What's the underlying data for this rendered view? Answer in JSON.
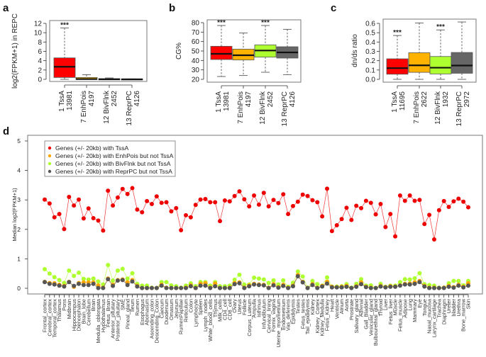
{
  "chart_data": [
    {
      "panel": "a",
      "type": "boxplot",
      "ylabel": "log2(FPKM+1) in REPC",
      "ylim": [
        0,
        12
      ],
      "yticks": [
        0,
        2,
        4,
        6,
        8,
        10,
        12
      ],
      "categories": [
        {
          "name": "1 TssA",
          "n": "13981",
          "color": "#ff0000",
          "min": 0,
          "q1": 0.4,
          "median": 2.7,
          "q3": 4.6,
          "max": 11,
          "sig": "***"
        },
        {
          "name": "7 EnhPois",
          "n": "4197",
          "color": "#d6a800",
          "min": 0,
          "q1": 0,
          "median": 0.05,
          "q3": 0.4,
          "max": 1.0,
          "sig": ""
        },
        {
          "name": "12 BivFlnk",
          "n": "2452",
          "color": "#adff2f",
          "min": 0,
          "q1": 0,
          "median": 0,
          "q3": 0.15,
          "max": 0.3,
          "sig": ""
        },
        {
          "name": "13 ReprPC",
          "n": "4126",
          "color": "#666666",
          "min": 0,
          "q1": 0,
          "median": 0,
          "q3": 0.1,
          "max": 0.1,
          "sig": ""
        }
      ]
    },
    {
      "panel": "b",
      "type": "boxplot",
      "ylabel": "CG%",
      "ylim": [
        20,
        80
      ],
      "yticks": [
        20,
        30,
        40,
        50,
        60,
        70,
        80
      ],
      "categories": [
        {
          "name": "1 TssA",
          "n": "13981",
          "color": "#ff0000",
          "min": 23,
          "q1": 41,
          "median": 47,
          "q3": 55,
          "max": 77,
          "sig": "***"
        },
        {
          "name": "7 EnhPois",
          "n": "4197",
          "color": "#ffb300",
          "min": 24,
          "q1": 40.5,
          "median": 45.5,
          "q3": 52,
          "max": 69,
          "sig": ""
        },
        {
          "name": "12 BivFlnk",
          "n": "2452",
          "color": "#adff2f",
          "min": 27.5,
          "q1": 43.5,
          "median": 50.5,
          "q3": 56.5,
          "max": 77,
          "sig": "***"
        },
        {
          "name": "13 ReprPC",
          "n": "4126",
          "color": "#666666",
          "min": 25,
          "q1": 42.5,
          "median": 48.5,
          "q3": 54.5,
          "max": 73,
          "sig": ""
        }
      ]
    },
    {
      "panel": "c",
      "type": "boxplot",
      "ylabel": "dn/ds ratio",
      "ylim": [
        0,
        0.6
      ],
      "yticks": [
        "0.0",
        "0.1",
        "0.2",
        "0.3",
        "0.4",
        "0.5",
        "0.6"
      ],
      "categories": [
        {
          "name": "1 TssA",
          "n": "11695",
          "color": "#ff0000",
          "min": 0,
          "q1": 0.055,
          "median": 0.12,
          "q3": 0.22,
          "max": 0.47,
          "sig": "***"
        },
        {
          "name": "7 EnhPois",
          "n": "2622",
          "color": "#ffb300",
          "min": 0,
          "q1": 0.075,
          "median": 0.15,
          "q3": 0.285,
          "max": 0.605,
          "sig": ""
        },
        {
          "name": "12 BivFlnk",
          "n": "1932",
          "color": "#adff2f",
          "min": 0,
          "q1": 0.058,
          "median": 0.125,
          "q3": 0.245,
          "max": 0.53,
          "sig": "***"
        },
        {
          "name": "13 ReprPC",
          "n": "2972",
          "color": "#666666",
          "min": 0,
          "q1": 0.065,
          "median": 0.148,
          "q3": 0.288,
          "max": 0.615,
          "sig": ""
        }
      ]
    },
    {
      "panel": "d",
      "type": "line",
      "ylabel": "Median log2(FPKM+1)",
      "ylim": [
        0,
        5
      ],
      "yticks": [
        0,
        1,
        2,
        3,
        4,
        5
      ],
      "legend_position": "top-left",
      "categories": [
        "Frontal_cortex",
        "Cerebral_cortex",
        "Temporal_cortex",
        "Thalamus",
        "Pons",
        "Midbrain",
        "Hippocampus",
        "Diencephalon",
        "Brain_lobe",
        "Cerebellum",
        "Brain",
        "Medulla_oblongata",
        "Hypothalamus",
        "Fetus_Brain",
        "Anterior_pituitary",
        "Posterior_pituitary",
        "SME",
        "Pineal_gland",
        "Ileum",
        "Rumen",
        "Esophagus",
        "Abomasum",
        "Ascending_colon",
        "Descending_Colon",
        "Caecum",
        "Duodenum",
        "Omasum",
        "Jejunum",
        "RumenPapillae",
        "Reticulum",
        "Colon",
        "Lymphocyte",
        "Spleen",
        "Lymph_nodes",
        "White_blood_cells",
        "Thymus",
        "Milk_cells",
        "CD4_cell",
        "CD8_cell",
        "Ovary",
        "Uterus",
        "Follicle",
        "Corpus_Luteum",
        "Ampulla",
        "Isthmus",
        "Infundibulum",
        "Cervical_lining",
        "Fornix_vagina",
        "Uterine_myometrium",
        "Endometrium",
        "Vas_deferens",
        "Epididymis",
        "Testes",
        "Fetus_testes",
        "Tail_epididymis",
        "Kidney",
        "Kidney_Cortex",
        "Kidney_Medulla",
        "Fetus_Kidney",
        "Heart",
        "Ventricle",
        "Atrium",
        "Aorta",
        "Prostrate",
        "Salivary_gland",
        "Adrenal",
        "Gall_Bladder",
        "Vesicular_gland",
        "Bulbourethral_gland",
        "Thyroid",
        "Liver",
        "Fetus_liver",
        "Muscle",
        "Fetus_muscle",
        "Adipose",
        "Lung",
        "Mammary",
        "Eye",
        "Tongue",
        "Nasal_mucosa",
        "Larynx_cartilage",
        "Trachea",
        "Diaphragm",
        "Ureter",
        "bladder",
        "Urethra",
        "Bone_marrow",
        "Skin"
      ],
      "series": [
        {
          "name": "Genes (+/- 20kb) with TssA",
          "color": "#ee0000",
          "values": [
            3.01,
            2.88,
            2.41,
            2.52,
            2.01,
            3.1,
            2.81,
            3.01,
            2.37,
            2.71,
            2.38,
            2.3,
            1.96,
            3.31,
            2.81,
            3.08,
            3.37,
            3.2,
            3.4,
            2.67,
            2.58,
            2.96,
            2.86,
            3.12,
            2.9,
            2.92,
            2.61,
            2.72,
            1.97,
            2.48,
            2.41,
            2.83,
            3.01,
            3.03,
            2.92,
            2.92,
            2.28,
            2.98,
            2.95,
            3.13,
            3.29,
            3.02,
            2.78,
            3.15,
            2.84,
            3.24,
            2.78,
            3.0,
            2.89,
            3.19,
            2.52,
            2.79,
            2.94,
            3.18,
            3.13,
            2.99,
            2.92,
            2.44,
            3.38,
            1.94,
            2.14,
            2.35,
            2.73,
            2.32,
            2.8,
            2.72,
            2.97,
            2.9,
            2.51,
            2.86,
            2.08,
            2.52,
            1.76,
            3.15,
            2.97,
            3.15,
            2.97,
            3.0,
            2.18,
            2.49,
            1.66,
            2.65,
            2.96,
            2.76,
            2.95,
            3.04,
            2.94,
            2.75
          ]
        },
        {
          "name": "Genes (+/- 20kb) with EnhPois but not TssA",
          "color": "#ffa500",
          "values": [
            0.22,
            0.18,
            0.17,
            0.12,
            0.08,
            0.22,
            0.05,
            0.18,
            0.2,
            0.2,
            0.2,
            0.1,
            0.02,
            0.33,
            0.12,
            0.28,
            0.3,
            0.2,
            0.28,
            0.08,
            0.01,
            0.01,
            0.01,
            0.01,
            0.12,
            0.02,
            0.01,
            0.01,
            0.01,
            0.02,
            0.1,
            0.01,
            0.15,
            0.17,
            0.02,
            0.16,
            0.01,
            0.01,
            0.02,
            0.18,
            0.2,
            0.02,
            0.1,
            0.15,
            0.13,
            0.12,
            0.02,
            0.14,
            0.04,
            0.12,
            0.02,
            0.09,
            0.45,
            0.22,
            0.01,
            0.14,
            0.02,
            0.08,
            0.22,
            0.05,
            0.04,
            0.05,
            0.08,
            0.01,
            0.07,
            0.2,
            0.05,
            0.02,
            0.01,
            0.08,
            0.04,
            0.07,
            0.06,
            0.1,
            0.15,
            0.16,
            0.2,
            0.25,
            0.08,
            0.02,
            0.02,
            0.01,
            0.02,
            0.08,
            0.04,
            0.12,
            0.05,
            0.17
          ]
        },
        {
          "name": "Genes (+/- 20kb) with BivFlnk but not TssA",
          "color": "#adff2f",
          "values": [
            0.65,
            0.5,
            0.38,
            0.28,
            0.18,
            0.6,
            0.42,
            0.53,
            0.32,
            0.3,
            0.33,
            0.23,
            0.13,
            0.79,
            0.26,
            0.6,
            0.66,
            0.33,
            0.51,
            0.15,
            0.09,
            0.09,
            0.02,
            0.01,
            0.21,
            0.21,
            0.1,
            0.07,
            0.02,
            0.09,
            0.17,
            0.07,
            0.21,
            0.21,
            0.09,
            0.21,
            0.07,
            0.07,
            0.09,
            0.29,
            0.46,
            0.13,
            0.13,
            0.36,
            0.33,
            0.3,
            0.18,
            0.27,
            0.13,
            0.27,
            0.05,
            0.19,
            0.57,
            0.4,
            0.02,
            0.25,
            0.14,
            0.09,
            0.37,
            0.06,
            0.06,
            0.07,
            0.14,
            0.02,
            0.15,
            0.31,
            0.09,
            0.1,
            0.01,
            0.15,
            0.05,
            0.09,
            0.09,
            0.21,
            0.31,
            0.3,
            0.34,
            0.51,
            0.14,
            0.11,
            0.09,
            0.02,
            0.02,
            0.17,
            0.25,
            0.25,
            0.1,
            0.25
          ]
        },
        {
          "name": "Genes (+/- 20kb) with ReprPC but not TssA",
          "color": "#555555",
          "values": [
            0.21,
            0.15,
            0.13,
            0.09,
            0.06,
            0.21,
            0.08,
            0.15,
            0.11,
            0.11,
            0.15,
            0.01,
            0.01,
            0.31,
            0.08,
            0.26,
            0.28,
            0.11,
            0.23,
            0.06,
            0.01,
            0.01,
            0.01,
            0.01,
            0.09,
            0.01,
            0.01,
            0.01,
            0.01,
            0.01,
            0.07,
            0.01,
            0.09,
            0.09,
            0.01,
            0.07,
            0.01,
            0.01,
            0.01,
            0.14,
            0.17,
            0.01,
            0.07,
            0.13,
            0.11,
            0.1,
            0.01,
            0.1,
            0.02,
            0.08,
            0.01,
            0.07,
            0.41,
            0.2,
            0.01,
            0.11,
            0.01,
            0.06,
            0.16,
            0.03,
            0.03,
            0.03,
            0.05,
            0.01,
            0.05,
            0.14,
            0.04,
            0.01,
            0.01,
            0.06,
            0.03,
            0.05,
            0.05,
            0.09,
            0.13,
            0.13,
            0.15,
            0.21,
            0.06,
            0.01,
            0.01,
            0.01,
            0.01,
            0.05,
            0.02,
            0.09,
            0.03,
            0.09
          ]
        }
      ]
    }
  ]
}
